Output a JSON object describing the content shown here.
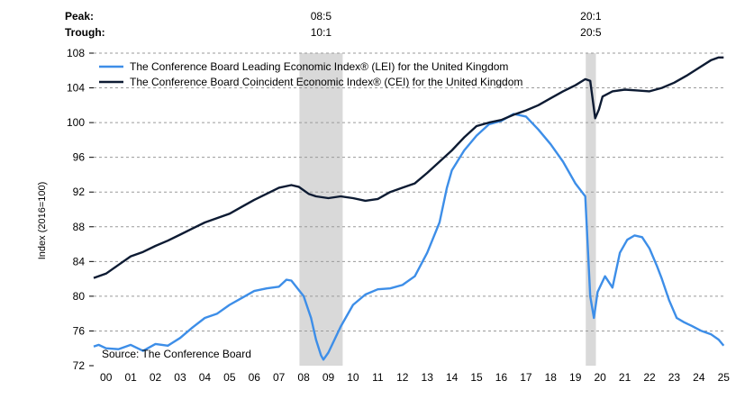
{
  "chart_data": {
    "type": "line",
    "corner_labels": {
      "peak": "Peak:",
      "trough": "Trough:"
    },
    "ylabel": "Index (2016=100)",
    "source": "Source: The Conference Board",
    "ylim": [
      72,
      108
    ],
    "yticks": [
      72,
      76,
      80,
      84,
      88,
      92,
      96,
      100,
      104,
      108
    ],
    "xlim": [
      2000,
      2025.6
    ],
    "xticks": [
      {
        "x": 2000.5,
        "label": "00"
      },
      {
        "x": 2001.5,
        "label": "01"
      },
      {
        "x": 2002.5,
        "label": "02"
      },
      {
        "x": 2003.5,
        "label": "03"
      },
      {
        "x": 2004.5,
        "label": "04"
      },
      {
        "x": 2005.5,
        "label": "05"
      },
      {
        "x": 2006.5,
        "label": "06"
      },
      {
        "x": 2007.5,
        "label": "07"
      },
      {
        "x": 2008.5,
        "label": "08"
      },
      {
        "x": 2009.5,
        "label": "09"
      },
      {
        "x": 2010.5,
        "label": "10"
      },
      {
        "x": 2011.5,
        "label": "11"
      },
      {
        "x": 2012.5,
        "label": "12"
      },
      {
        "x": 2013.5,
        "label": "13"
      },
      {
        "x": 2014.5,
        "label": "14"
      },
      {
        "x": 2015.5,
        "label": "15"
      },
      {
        "x": 2016.5,
        "label": "16"
      },
      {
        "x": 2017.5,
        "label": "17"
      },
      {
        "x": 2018.5,
        "label": "18"
      },
      {
        "x": 2019.5,
        "label": "19"
      },
      {
        "x": 2020.5,
        "label": "20"
      },
      {
        "x": 2021.5,
        "label": "21"
      },
      {
        "x": 2022.5,
        "label": "22"
      },
      {
        "x": 2023.5,
        "label": "23"
      },
      {
        "x": 2024.5,
        "label": "24"
      },
      {
        "x": 2025.5,
        "label": "25"
      }
    ],
    "recessions": [
      {
        "start": 2008.33,
        "end": 2010.08,
        "peak_label": "08:5",
        "trough_label": "10:1"
      },
      {
        "start": 2019.92,
        "end": 2020.33,
        "peak_label": "20:1",
        "trough_label": "20:5"
      }
    ],
    "grid": "horizontal-dashed",
    "legend": "top-left",
    "series": [
      {
        "name": "The Conference Board Leading Economic Index® (LEI) for the United Kingdom",
        "color": "#3d8ee8",
        "points": [
          [
            2000.0,
            74.2
          ],
          [
            2000.2,
            74.4
          ],
          [
            2000.5,
            74.0
          ],
          [
            2001.0,
            73.9
          ],
          [
            2001.5,
            74.4
          ],
          [
            2002.0,
            73.7
          ],
          [
            2002.5,
            74.5
          ],
          [
            2003.0,
            74.3
          ],
          [
            2003.5,
            75.2
          ],
          [
            2004.0,
            76.4
          ],
          [
            2004.5,
            77.5
          ],
          [
            2005.0,
            78.0
          ],
          [
            2005.5,
            79.0
          ],
          [
            2006.0,
            79.8
          ],
          [
            2006.5,
            80.6
          ],
          [
            2007.0,
            80.9
          ],
          [
            2007.5,
            81.1
          ],
          [
            2007.8,
            81.9
          ],
          [
            2008.0,
            81.8
          ],
          [
            2008.5,
            80.0
          ],
          [
            2008.8,
            77.5
          ],
          [
            2009.0,
            75.0
          ],
          [
            2009.2,
            73.2
          ],
          [
            2009.3,
            72.7
          ],
          [
            2009.5,
            73.5
          ],
          [
            2010.0,
            76.5
          ],
          [
            2010.5,
            79.0
          ],
          [
            2011.0,
            80.2
          ],
          [
            2011.5,
            80.8
          ],
          [
            2012.0,
            80.9
          ],
          [
            2012.5,
            81.3
          ],
          [
            2013.0,
            82.3
          ],
          [
            2013.5,
            85.0
          ],
          [
            2014.0,
            88.5
          ],
          [
            2014.3,
            92.5
          ],
          [
            2014.5,
            94.5
          ],
          [
            2015.0,
            96.8
          ],
          [
            2015.5,
            98.5
          ],
          [
            2016.0,
            99.8
          ],
          [
            2016.5,
            100.2
          ],
          [
            2017.0,
            101.0
          ],
          [
            2017.5,
            100.7
          ],
          [
            2018.0,
            99.2
          ],
          [
            2018.5,
            97.5
          ],
          [
            2019.0,
            95.5
          ],
          [
            2019.5,
            93.0
          ],
          [
            2019.9,
            91.5
          ],
          [
            2020.1,
            80.0
          ],
          [
            2020.25,
            77.5
          ],
          [
            2020.4,
            80.5
          ],
          [
            2020.7,
            82.3
          ],
          [
            2021.0,
            81.0
          ],
          [
            2021.3,
            85.0
          ],
          [
            2021.6,
            86.5
          ],
          [
            2021.9,
            87.0
          ],
          [
            2022.2,
            86.8
          ],
          [
            2022.5,
            85.5
          ],
          [
            2022.8,
            83.5
          ],
          [
            2023.0,
            82.0
          ],
          [
            2023.3,
            79.5
          ],
          [
            2023.6,
            77.5
          ],
          [
            2023.9,
            77.0
          ],
          [
            2024.2,
            76.6
          ],
          [
            2024.6,
            76.0
          ],
          [
            2025.0,
            75.6
          ],
          [
            2025.3,
            75.0
          ],
          [
            2025.5,
            74.3
          ]
        ]
      },
      {
        "name": "The Conference Board Coincident Economic Index® (CEI) for the United Kingdom",
        "color": "#0d1b33",
        "points": [
          [
            2000.0,
            82.1
          ],
          [
            2000.5,
            82.6
          ],
          [
            2001.0,
            83.6
          ],
          [
            2001.5,
            84.6
          ],
          [
            2002.0,
            85.1
          ],
          [
            2002.5,
            85.8
          ],
          [
            2003.0,
            86.4
          ],
          [
            2003.5,
            87.1
          ],
          [
            2004.0,
            87.8
          ],
          [
            2004.5,
            88.5
          ],
          [
            2005.0,
            89.0
          ],
          [
            2005.5,
            89.5
          ],
          [
            2006.0,
            90.3
          ],
          [
            2006.5,
            91.1
          ],
          [
            2007.0,
            91.8
          ],
          [
            2007.5,
            92.5
          ],
          [
            2008.0,
            92.8
          ],
          [
            2008.3,
            92.6
          ],
          [
            2008.7,
            91.8
          ],
          [
            2009.0,
            91.5
          ],
          [
            2009.5,
            91.3
          ],
          [
            2010.0,
            91.5
          ],
          [
            2010.5,
            91.3
          ],
          [
            2011.0,
            91.0
          ],
          [
            2011.5,
            91.2
          ],
          [
            2012.0,
            92.0
          ],
          [
            2012.5,
            92.5
          ],
          [
            2013.0,
            93.0
          ],
          [
            2013.5,
            94.2
          ],
          [
            2014.0,
            95.5
          ],
          [
            2014.5,
            96.8
          ],
          [
            2015.0,
            98.3
          ],
          [
            2015.5,
            99.6
          ],
          [
            2016.0,
            100.0
          ],
          [
            2016.5,
            100.3
          ],
          [
            2017.0,
            100.9
          ],
          [
            2017.5,
            101.4
          ],
          [
            2018.0,
            102.0
          ],
          [
            2018.5,
            102.8
          ],
          [
            2019.0,
            103.6
          ],
          [
            2019.5,
            104.3
          ],
          [
            2019.9,
            105.0
          ],
          [
            2020.1,
            104.8
          ],
          [
            2020.3,
            100.5
          ],
          [
            2020.45,
            101.5
          ],
          [
            2020.6,
            103.0
          ],
          [
            2021.0,
            103.6
          ],
          [
            2021.5,
            103.8
          ],
          [
            2022.0,
            103.7
          ],
          [
            2022.5,
            103.6
          ],
          [
            2023.0,
            104.0
          ],
          [
            2023.5,
            104.6
          ],
          [
            2024.0,
            105.4
          ],
          [
            2024.5,
            106.3
          ],
          [
            2025.0,
            107.2
          ],
          [
            2025.3,
            107.5
          ],
          [
            2025.5,
            107.5
          ]
        ]
      }
    ]
  }
}
